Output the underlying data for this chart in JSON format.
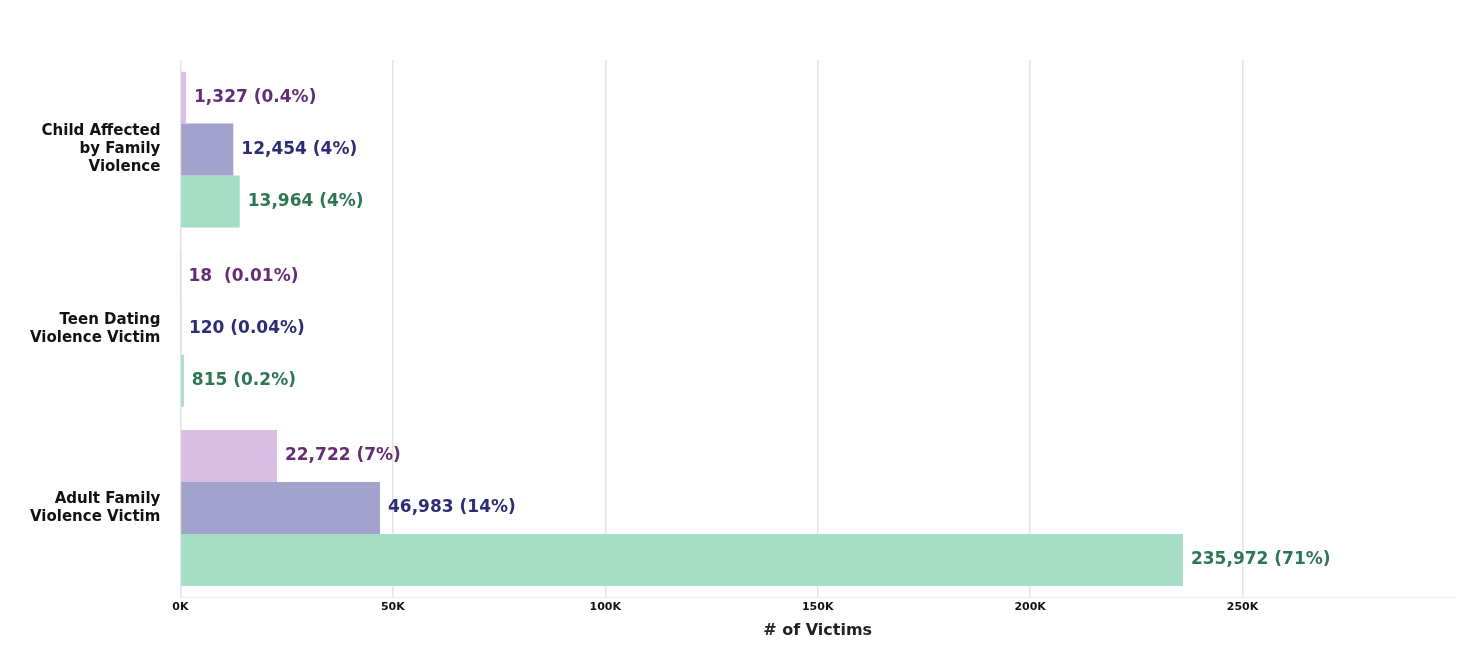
{
  "chart_data": {
    "type": "bar",
    "orientation": "horizontal",
    "xlabel": "# of Victims",
    "categories": [
      "Child Affected by Family Violence",
      "Teen Dating Violence Victim",
      "Adult Family Violence Victim"
    ],
    "series": [
      {
        "color": "#d9bde2",
        "values": [
          1327,
          18,
          22722
        ],
        "value_labels": [
          "1,327 (0.4%)",
          "18  (0.01%)",
          "22,722 (7%)"
        ]
      },
      {
        "color": "#a2a2cc",
        "values": [
          12454,
          120,
          46983
        ],
        "value_labels": [
          "12,454 (4%)",
          "120 (0.04%)",
          "46,983 (14%)"
        ]
      },
      {
        "color": "#a6dec5",
        "values": [
          13964,
          815,
          235972
        ],
        "value_labels": [
          "13,964 (4%)",
          "815 (0.2%)",
          "235,972 (71%)"
        ]
      }
    ],
    "xlim": [
      0,
      300000
    ],
    "xticks": [
      {
        "value": 0,
        "label": "0K"
      },
      {
        "value": 50000,
        "label": "50K"
      },
      {
        "value": 100000,
        "label": "100K"
      },
      {
        "value": 150000,
        "label": "150K"
      },
      {
        "value": 200000,
        "label": "200K"
      },
      {
        "value": 250000,
        "label": "250K"
      }
    ],
    "grid": "x",
    "legend": false
  }
}
